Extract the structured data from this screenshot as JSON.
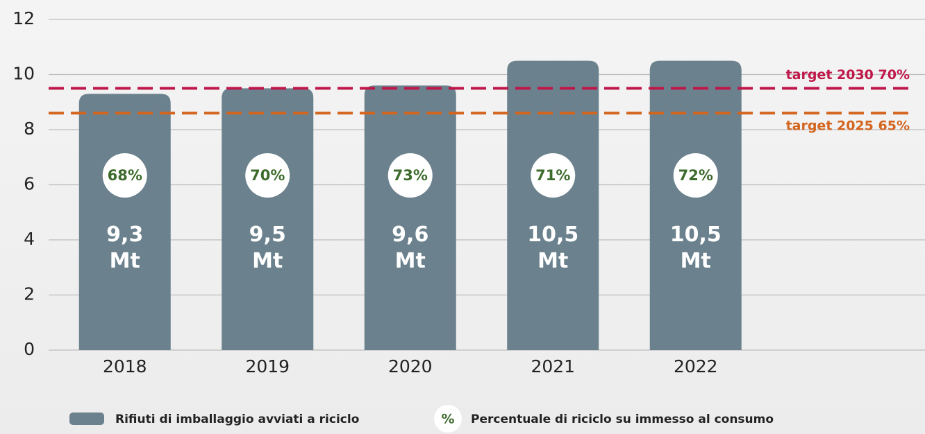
{
  "chart_data": {
    "type": "bar",
    "categories": [
      "2018",
      "2019",
      "2020",
      "2021",
      "2022"
    ],
    "series": [
      {
        "name": "Rifiuti di imballaggio avviati a riciclo",
        "color": "#6b818d",
        "values": [
          9.3,
          9.5,
          9.6,
          10.5,
          10.5
        ],
        "value_labels": [
          "9,3 Mt",
          "9,5 Mt",
          "9,6 Mt",
          "10,5 Mt",
          "10,5 Mt"
        ]
      }
    ],
    "rates": {
      "name": "Percentuale di riciclo su immesso al consumo",
      "symbol": "%",
      "color": "#3d6b2c",
      "values": [
        68,
        70,
        73,
        71,
        72
      ],
      "value_labels": [
        "68%",
        "70%",
        "73%",
        "71%",
        "72%"
      ]
    },
    "targets": [
      {
        "label": "target 2030 70%",
        "value": 9.5,
        "color": "#c0174a"
      },
      {
        "label": "target 2025 65%",
        "value": 8.6,
        "color": "#d4651f"
      }
    ],
    "ylim": [
      0,
      12
    ],
    "yticks": [
      0,
      2,
      4,
      6,
      8,
      10,
      12
    ],
    "grid": true
  }
}
